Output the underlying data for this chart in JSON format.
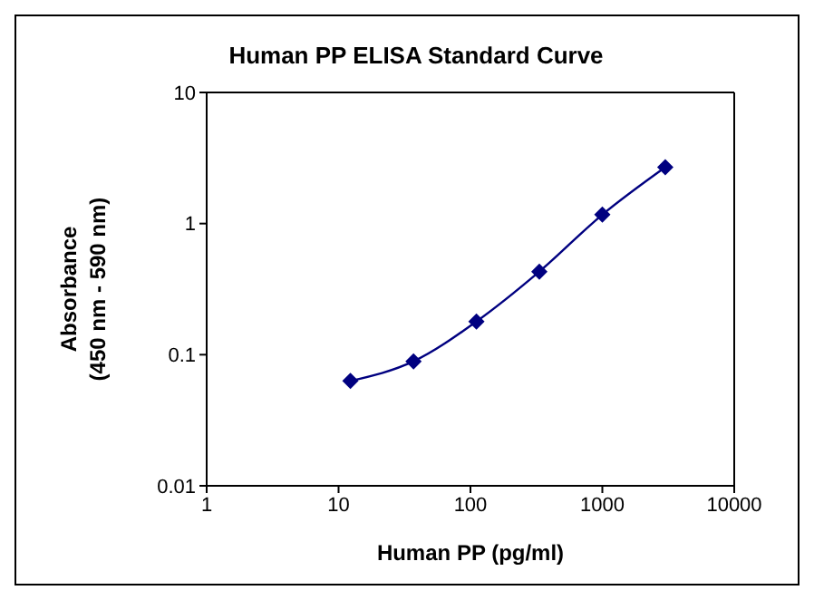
{
  "chart_data": {
    "type": "line",
    "title": "Human PP ELISA Standard Curve",
    "xlabel": "Human PP (pg/ml)",
    "ylabel": "Absorbance\n(450 nm - 590 nm)",
    "x": [
      12.3,
      37,
      111,
      333,
      1000,
      3000
    ],
    "series": [
      {
        "color": "#000080",
        "values": [
          0.063,
          0.089,
          0.179,
          0.43,
          1.17,
          2.69
        ]
      }
    ],
    "xlim": [
      1,
      10000
    ],
    "xticks": [
      1,
      10,
      100,
      1000,
      10000
    ],
    "ylim": [
      0.01,
      10
    ],
    "yticks": [
      0.01,
      0.1,
      1,
      10
    ],
    "log": "xy",
    "grid": false,
    "legend": false,
    "marker": "diamond",
    "line_style": "solid"
  }
}
